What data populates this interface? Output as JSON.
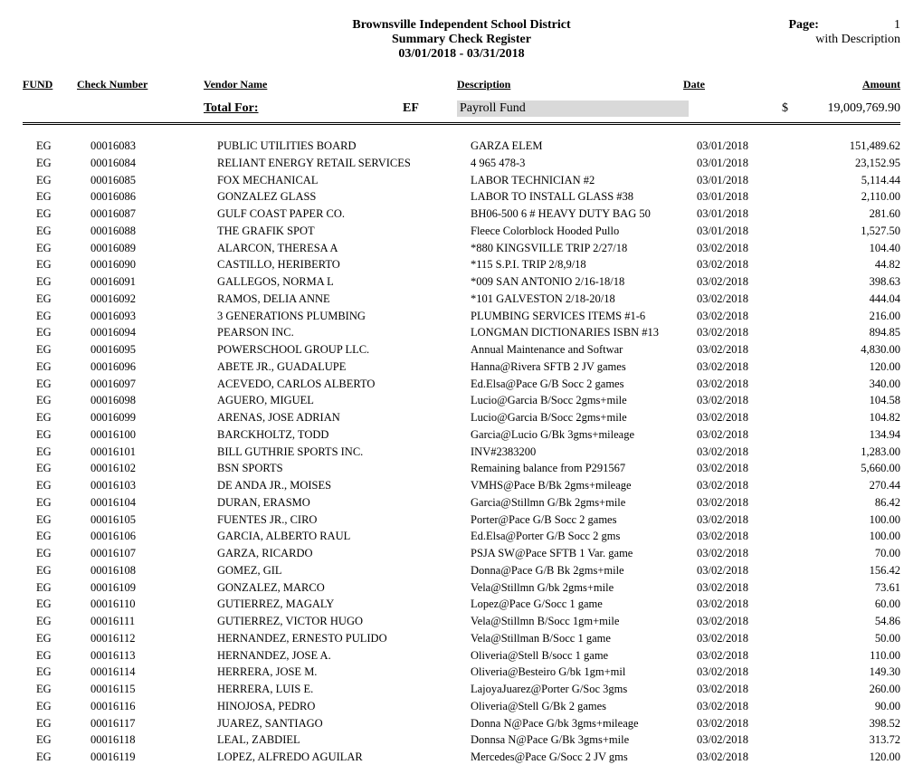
{
  "header": {
    "org": "Brownsville Independent School District",
    "report": "Summary Check Register",
    "date_range": "03/01/2018   -   03/31/2018",
    "page_label": "Page:",
    "page_num": "1",
    "with_desc": "with Description"
  },
  "columns": {
    "fund": "FUND",
    "check": "Check Number",
    "vendor": "Vendor Name",
    "desc": "Description",
    "date": "Date",
    "amount": "Amount"
  },
  "total": {
    "label": "Total For:",
    "code": "EF",
    "fund_name": "Payroll Fund",
    "currency": "$",
    "amount": "19,009,769.90"
  },
  "rows": [
    {
      "fund": "EG",
      "check": "00016083",
      "vendor": "PUBLIC UTILITIES BOARD",
      "desc": "GARZA ELEM",
      "date": "03/01/2018",
      "amount": "151,489.62"
    },
    {
      "fund": "EG",
      "check": "00016084",
      "vendor": "RELIANT ENERGY RETAIL SERVICES",
      "desc": "4 965 478-3",
      "date": "03/01/2018",
      "amount": "23,152.95"
    },
    {
      "fund": "EG",
      "check": "00016085",
      "vendor": "FOX MECHANICAL",
      "desc": "LABOR  TECHNICIAN  #2",
      "date": "03/01/2018",
      "amount": "5,114.44"
    },
    {
      "fund": "EG",
      "check": "00016086",
      "vendor": "GONZALEZ GLASS",
      "desc": "LABOR  TO INSTALL GLASS  #38",
      "date": "03/01/2018",
      "amount": "2,110.00"
    },
    {
      "fund": "EG",
      "check": "00016087",
      "vendor": "GULF COAST PAPER CO.",
      "desc": "BH06-500 6 # HEAVY DUTY BAG 50",
      "date": "03/01/2018",
      "amount": "281.60"
    },
    {
      "fund": "EG",
      "check": "00016088",
      "vendor": "THE GRAFIK SPOT",
      "desc": "Fleece Colorblock Hooded Pullo",
      "date": "03/01/2018",
      "amount": "1,527.50"
    },
    {
      "fund": "EG",
      "check": "00016089",
      "vendor": "ALARCON, THERESA A",
      "desc": "*880 KINGSVILLE TRIP 2/27/18",
      "date": "03/02/2018",
      "amount": "104.40"
    },
    {
      "fund": "EG",
      "check": "00016090",
      "vendor": "CASTILLO, HERIBERTO",
      "desc": "*115 S.P.I. TRIP 2/8,9/18",
      "date": "03/02/2018",
      "amount": "44.82"
    },
    {
      "fund": "EG",
      "check": "00016091",
      "vendor": "GALLEGOS, NORMA L",
      "desc": "*009 SAN ANTONIO 2/16-18/18",
      "date": "03/02/2018",
      "amount": "398.63"
    },
    {
      "fund": "EG",
      "check": "00016092",
      "vendor": "RAMOS, DELIA ANNE",
      "desc": "*101 GALVESTON 2/18-20/18",
      "date": "03/02/2018",
      "amount": "444.04"
    },
    {
      "fund": "EG",
      "check": "00016093",
      "vendor": "3 GENERATIONS PLUMBING",
      "desc": "PLUMBING SERVICES  ITEMS #1-6",
      "date": "03/02/2018",
      "amount": "216.00"
    },
    {
      "fund": "EG",
      "check": "00016094",
      "vendor": "PEARSON INC.",
      "desc": "LONGMAN DICTIONARIES ISBN #13",
      "date": "03/02/2018",
      "amount": "894.85"
    },
    {
      "fund": "EG",
      "check": "00016095",
      "vendor": "POWERSCHOOL GROUP LLC.",
      "desc": "Annual Maintenance and Softwar",
      "date": "03/02/2018",
      "amount": "4,830.00"
    },
    {
      "fund": "EG",
      "check": "00016096",
      "vendor": "ABETE JR., GUADALUPE",
      "desc": "Hanna@Rivera SFTB 2 JV games",
      "date": "03/02/2018",
      "amount": "120.00"
    },
    {
      "fund": "EG",
      "check": "00016097",
      "vendor": "ACEVEDO, CARLOS ALBERTO",
      "desc": "Ed.Elsa@Pace G/B Socc 2 games",
      "date": "03/02/2018",
      "amount": "340.00"
    },
    {
      "fund": "EG",
      "check": "00016098",
      "vendor": "AGUERO, MIGUEL",
      "desc": "Lucio@Garcia B/Socc 2gms+mile",
      "date": "03/02/2018",
      "amount": "104.58"
    },
    {
      "fund": "EG",
      "check": "00016099",
      "vendor": "ARENAS, JOSE ADRIAN",
      "desc": "Lucio@Garcia B/Socc 2gms+mile",
      "date": "03/02/2018",
      "amount": "104.82"
    },
    {
      "fund": "EG",
      "check": "00016100",
      "vendor": "BARCKHOLTZ, TODD",
      "desc": "Garcia@Lucio G/Bk 3gms+mileage",
      "date": "03/02/2018",
      "amount": "134.94"
    },
    {
      "fund": "EG",
      "check": "00016101",
      "vendor": "BILL GUTHRIE SPORTS INC.",
      "desc": "INV#2383200",
      "date": "03/02/2018",
      "amount": "1,283.00"
    },
    {
      "fund": "EG",
      "check": "00016102",
      "vendor": "BSN SPORTS",
      "desc": "Remaining balance from P291567",
      "date": "03/02/2018",
      "amount": "5,660.00"
    },
    {
      "fund": "EG",
      "check": "00016103",
      "vendor": "DE ANDA JR., MOISES",
      "desc": "VMHS@Pace B/Bk 2gms+mileage",
      "date": "03/02/2018",
      "amount": "270.44"
    },
    {
      "fund": "EG",
      "check": "00016104",
      "vendor": "DURAN, ERASMO",
      "desc": "Garcia@Stillmn G/Bk 2gms+mile",
      "date": "03/02/2018",
      "amount": "86.42"
    },
    {
      "fund": "EG",
      "check": "00016105",
      "vendor": "FUENTES JR., CIRO",
      "desc": "Porter@Pace G/B Socc 2 games",
      "date": "03/02/2018",
      "amount": "100.00"
    },
    {
      "fund": "EG",
      "check": "00016106",
      "vendor": "GARCIA, ALBERTO RAUL",
      "desc": "Ed.Elsa@Porter G/B Socc 2 gms",
      "date": "03/02/2018",
      "amount": "100.00"
    },
    {
      "fund": "EG",
      "check": "00016107",
      "vendor": "GARZA, RICARDO",
      "desc": "PSJA SW@Pace SFTB 1 Var. game",
      "date": "03/02/2018",
      "amount": "70.00"
    },
    {
      "fund": "EG",
      "check": "00016108",
      "vendor": "GOMEZ, GIL",
      "desc": "Donna@Pace G/B Bk 2gms+mile",
      "date": "03/02/2018",
      "amount": "156.42"
    },
    {
      "fund": "EG",
      "check": "00016109",
      "vendor": "GONZALEZ, MARCO",
      "desc": "Vela@Stillmn G/bk 2gms+mile",
      "date": "03/02/2018",
      "amount": "73.61"
    },
    {
      "fund": "EG",
      "check": "00016110",
      "vendor": "GUTIERREZ, MAGALY",
      "desc": "Lopez@Pace G/Socc  1 game",
      "date": "03/02/2018",
      "amount": "60.00"
    },
    {
      "fund": "EG",
      "check": "00016111",
      "vendor": "GUTIERREZ, VICTOR HUGO",
      "desc": "Vela@Stillmn B/Socc 1gm+mile",
      "date": "03/02/2018",
      "amount": "54.86"
    },
    {
      "fund": "EG",
      "check": "00016112",
      "vendor": "HERNANDEZ, ERNESTO PULIDO",
      "desc": "Vela@Stillman B/Socc 1 game",
      "date": "03/02/2018",
      "amount": "50.00"
    },
    {
      "fund": "EG",
      "check": "00016113",
      "vendor": "HERNANDEZ, JOSE A.",
      "desc": "Oliveria@Stell B/socc 1 game",
      "date": "03/02/2018",
      "amount": "110.00"
    },
    {
      "fund": "EG",
      "check": "00016114",
      "vendor": "HERRERA, JOSE M.",
      "desc": "Oliveria@Besteiro G/bk 1gm+mil",
      "date": "03/02/2018",
      "amount": "149.30"
    },
    {
      "fund": "EG",
      "check": "00016115",
      "vendor": "HERRERA, LUIS E.",
      "desc": "LajoyaJuarez@Porter G/Soc 3gms",
      "date": "03/02/2018",
      "amount": "260.00"
    },
    {
      "fund": "EG",
      "check": "00016116",
      "vendor": "HINOJOSA, PEDRO",
      "desc": "Oliveria@Stell G/Bk 2 games",
      "date": "03/02/2018",
      "amount": "90.00"
    },
    {
      "fund": "EG",
      "check": "00016117",
      "vendor": "JUAREZ, SANTIAGO",
      "desc": "Donna N@Pace G/bk 3gms+mileage",
      "date": "03/02/2018",
      "amount": "398.52"
    },
    {
      "fund": "EG",
      "check": "00016118",
      "vendor": "LEAL, ZABDIEL",
      "desc": "Donnsa N@Pace G/Bk 3gms+mile",
      "date": "03/02/2018",
      "amount": "313.72"
    },
    {
      "fund": "EG",
      "check": "00016119",
      "vendor": "LOPEZ, ALFREDO AGUILAR",
      "desc": "Mercedes@Pace G/Socc 2 JV gms",
      "date": "03/02/2018",
      "amount": "120.00"
    }
  ]
}
